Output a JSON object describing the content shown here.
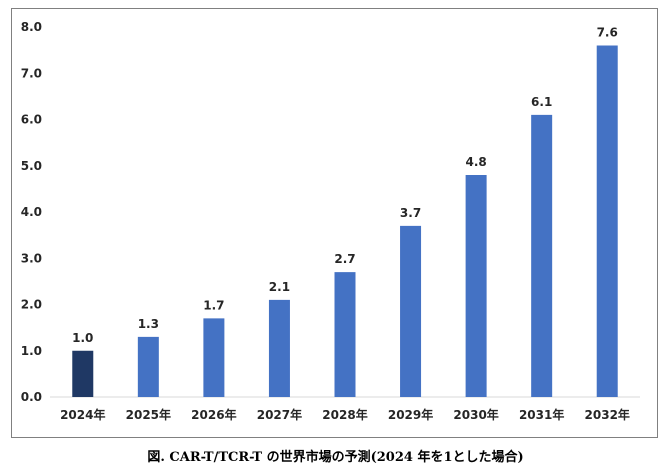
{
  "caption": "図. CAR-T/TCR-T の世界市場の予測(2024 年を1とした場合)",
  "chart_data": {
    "type": "bar",
    "categories": [
      "2024年",
      "2025年",
      "2026年",
      "2027年",
      "2028年",
      "2029年",
      "2030年",
      "2031年",
      "2032年"
    ],
    "values": [
      1.0,
      1.3,
      1.7,
      2.1,
      2.7,
      3.7,
      4.8,
      6.1,
      7.6
    ],
    "data_labels": [
      "1.0",
      "1.3",
      "1.7",
      "2.1",
      "2.7",
      "3.7",
      "4.8",
      "6.1",
      "7.6"
    ],
    "ylim": [
      0,
      8
    ],
    "yticks": [
      "0.0",
      "1.0",
      "2.0",
      "3.0",
      "4.0",
      "5.0",
      "6.0",
      "7.0",
      "8.0"
    ],
    "grid": false,
    "legend": "none",
    "colors": {
      "highlight": "#1f3864",
      "default": "#4472c4"
    },
    "highlight_category": "2024年"
  }
}
